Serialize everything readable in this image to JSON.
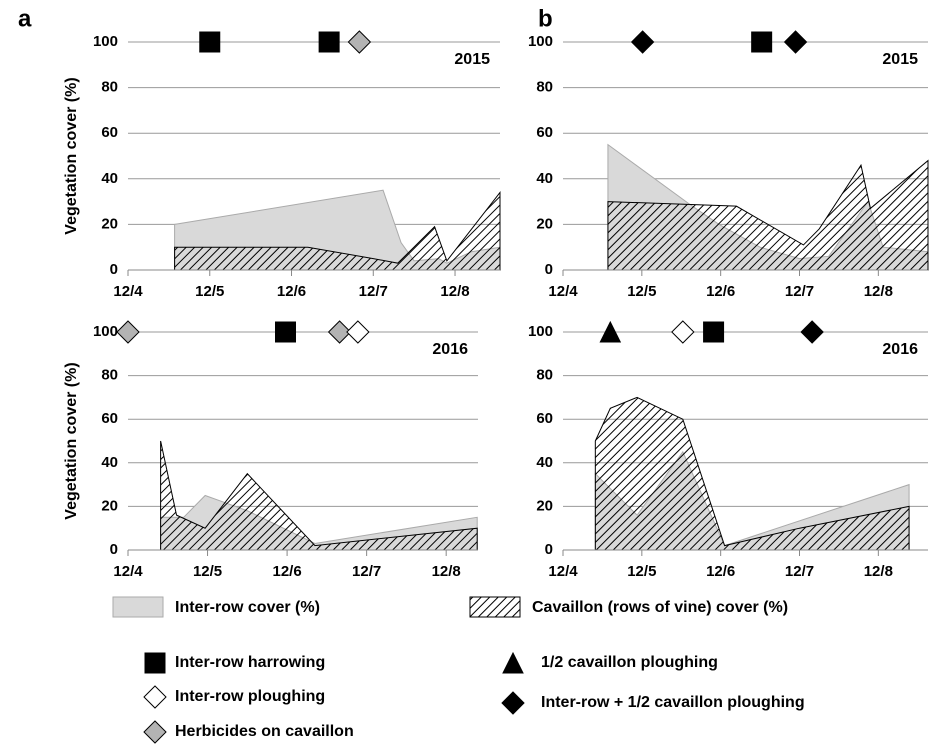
{
  "chart_data": [
    {
      "type": "area",
      "panel": "a",
      "year": "2015",
      "ylabel": "Vegetation cover (%)",
      "xlim": [
        4,
        8.55
      ],
      "ylim": [
        0,
        100
      ],
      "xticks": [
        {
          "value": 4,
          "label": "12/4"
        },
        {
          "value": 5,
          "label": "12/5"
        },
        {
          "value": 6,
          "label": "12/6"
        },
        {
          "value": 7,
          "label": "12/7"
        },
        {
          "value": 8,
          "label": "12/8"
        }
      ],
      "yticks": [
        0,
        20,
        40,
        60,
        80,
        100
      ],
      "grid": true,
      "series": [
        {
          "name": "Inter-row cover (%)",
          "color": "#d9d9d9",
          "x": [
            4.57,
            7.12,
            7.34,
            7.5,
            7.8,
            7.9,
            8.2,
            8.55
          ],
          "values": [
            20,
            35,
            12,
            4,
            5,
            3,
            8,
            10
          ]
        },
        {
          "name": "Cavaillon (rows of vine) cover (%)",
          "color": "#000000",
          "pattern": "hatch",
          "x": [
            4.57,
            6.2,
            7.0,
            7.3,
            7.75,
            7.9,
            8.55
          ],
          "values": [
            10,
            10,
            5,
            3,
            19,
            4,
            34
          ]
        }
      ],
      "markers": [
        {
          "name": "Inter-row harrowing",
          "x": [
            5.0,
            6.46
          ],
          "values": [
            100,
            100
          ]
        },
        {
          "name": "Herbicides on cavaillon",
          "x": [
            6.83
          ],
          "values": [
            100
          ]
        }
      ]
    },
    {
      "type": "area",
      "panel": "b",
      "year": "2015",
      "xlim": [
        4,
        8.63
      ],
      "ylim": [
        0,
        100
      ],
      "xticks": [
        {
          "value": 4,
          "label": "12/4"
        },
        {
          "value": 5,
          "label": "12/5"
        },
        {
          "value": 6,
          "label": "12/6"
        },
        {
          "value": 7,
          "label": "12/7"
        },
        {
          "value": 8,
          "label": "12/8"
        }
      ],
      "yticks": [
        0,
        20,
        40,
        60,
        80,
        100
      ],
      "grid": true,
      "series": [
        {
          "name": "Inter-row cover (%)",
          "color": "#d9d9d9",
          "x": [
            4.57,
            5.6,
            5.98,
            6.5,
            7.0,
            7.37,
            7.87,
            8.06,
            8.63
          ],
          "values": [
            55,
            29,
            20,
            10,
            5,
            6,
            30,
            10,
            8
          ]
        },
        {
          "name": "Cavaillon (rows of vine) cover (%)",
          "color": "#000000",
          "pattern": "hatch",
          "x": [
            4.57,
            6.2,
            7.05,
            7.25,
            7.78,
            7.9,
            8.63
          ],
          "values": [
            30,
            28,
            11,
            18,
            46,
            27,
            48
          ]
        }
      ],
      "markers": [
        {
          "name": "Inter-row + 1/2 cavaillon ploughing",
          "x": [
            5.01,
            6.95
          ],
          "values": [
            100,
            100
          ]
        },
        {
          "name": "Inter-row harrowing",
          "x": [
            6.52
          ],
          "values": [
            100
          ]
        }
      ]
    },
    {
      "type": "area",
      "year": "2016",
      "ylabel": "Vegetation cover (%)",
      "xlim": [
        4,
        8.4
      ],
      "ylim": [
        0,
        100
      ],
      "xticks": [
        {
          "value": 4,
          "label": "12/4"
        },
        {
          "value": 5,
          "label": "12/5"
        },
        {
          "value": 6,
          "label": "12/6"
        },
        {
          "value": 7,
          "label": "12/7"
        },
        {
          "value": 8,
          "label": "12/8"
        }
      ],
      "yticks": [
        0,
        20,
        40,
        60,
        80,
        100
      ],
      "grid": true,
      "series": [
        {
          "name": "Inter-row cover (%)",
          "color": "#d9d9d9",
          "x": [
            4.41,
            4.7,
            4.97,
            5.2,
            5.5,
            6.35,
            8.39
          ],
          "values": [
            15,
            15,
            25,
            22,
            18,
            3,
            15
          ]
        },
        {
          "name": "Cavaillon (rows of vine) cover (%)",
          "color": "#000000",
          "pattern": "hatch",
          "x": [
            4.41,
            4.61,
            4.97,
            5.5,
            6.35,
            8.39
          ],
          "values": [
            50,
            16,
            10,
            35,
            2,
            10
          ]
        }
      ],
      "markers": [
        {
          "name": "Herbicides on cavaillon",
          "x": [
            4.0,
            6.66
          ],
          "values": [
            100,
            100
          ]
        },
        {
          "name": "Inter-row harrowing",
          "x": [
            5.98
          ],
          "values": [
            100
          ]
        },
        {
          "name": "Inter-row ploughing",
          "x": [
            6.89
          ],
          "values": [
            100
          ]
        }
      ]
    },
    {
      "type": "area",
      "year": "2016",
      "xlim": [
        4,
        8.63
      ],
      "ylim": [
        0,
        100
      ],
      "xticks": [
        {
          "value": 4,
          "label": "12/4"
        },
        {
          "value": 5,
          "label": "12/5"
        },
        {
          "value": 6,
          "label": "12/6"
        },
        {
          "value": 7,
          "label": "12/7"
        },
        {
          "value": 8,
          "label": "12/8"
        }
      ],
      "yticks": [
        0,
        20,
        40,
        60,
        80,
        100
      ],
      "grid": true,
      "series": [
        {
          "name": "Inter-row cover (%)",
          "color": "#d9d9d9",
          "x": [
            4.41,
            4.94,
            5.52,
            6.05,
            8.39
          ],
          "values": [
            35,
            16,
            45,
            2,
            30
          ]
        },
        {
          "name": "Cavaillon (rows of vine) cover (%)",
          "color": "#000000",
          "pattern": "hatch",
          "x": [
            4.41,
            4.6,
            4.94,
            5.52,
            6.05,
            7.0,
            8.39
          ],
          "values": [
            50,
            65,
            70,
            60,
            2,
            10,
            20
          ]
        }
      ],
      "markers": [
        {
          "name": "1/2 cavaillon ploughing",
          "x": [
            4.6
          ],
          "values": [
            100
          ]
        },
        {
          "name": "Inter-row ploughing",
          "x": [
            5.52
          ],
          "values": [
            100
          ]
        },
        {
          "name": "Inter-row harrowing",
          "x": [
            5.91
          ],
          "values": [
            100
          ]
        },
        {
          "name": "Inter-row + 1/2 cavaillon ploughing",
          "x": [
            7.16
          ],
          "values": [
            100
          ]
        }
      ]
    }
  ],
  "marker_legend": [
    {
      "name": "Inter-row harrowing",
      "shape": "square",
      "fill": "#000000"
    },
    {
      "name": "Inter-row ploughing",
      "shape": "diamond",
      "fill": "#ffffff"
    },
    {
      "name": "Herbicides on cavaillon",
      "shape": "diamond",
      "fill": "#b3b3b3"
    },
    {
      "name": "1/2 cavaillon ploughing",
      "shape": "triangle",
      "fill": "#000000"
    },
    {
      "name": "Inter-row + 1/2 cavaillon ploughing",
      "shape": "diamond",
      "fill": "#000000"
    }
  ]
}
